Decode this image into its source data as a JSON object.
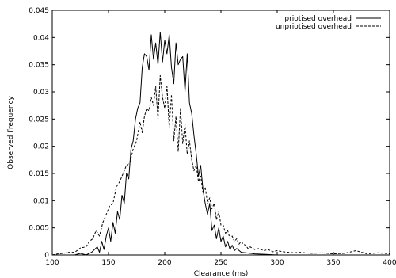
{
  "chart_data": {
    "type": "line",
    "xlabel": "Clearance (ms)",
    "ylabel": "Observed Frequency",
    "xlim": [
      100,
      400
    ],
    "ylim": [
      0,
      0.045
    ],
    "x_ticks": [
      "100",
      "150",
      "200",
      "250",
      "300",
      "350",
      "400"
    ],
    "y_ticks": [
      "0",
      "0.005",
      "0.01",
      "0.015",
      "0.02",
      "0.025",
      "0.03",
      "0.035",
      "0.04",
      "0.045"
    ],
    "grid": false,
    "legend_position": "top-right",
    "series": [
      {
        "name": "priotised overhead",
        "style": "solid",
        "x": [
          100,
          110,
          120,
          125,
          130,
          135,
          140,
          142,
          144,
          146,
          148,
          150,
          152,
          154,
          156,
          158,
          160,
          162,
          164,
          166,
          168,
          170,
          172,
          174,
          176,
          178,
          180,
          182,
          184,
          186,
          188,
          190,
          192,
          194,
          196,
          198,
          200,
          202,
          204,
          206,
          208,
          210,
          212,
          214,
          216,
          218,
          220,
          222,
          224,
          226,
          228,
          230,
          232,
          234,
          236,
          238,
          240,
          242,
          244,
          246,
          248,
          250,
          252,
          254,
          256,
          258,
          260,
          262,
          264,
          268,
          272,
          276,
          280,
          290,
          300,
          320,
          350,
          380,
          400
        ],
        "y": [
          0,
          0,
          0,
          0.0003,
          0,
          0.0005,
          0.0015,
          0.0005,
          0.0025,
          0.001,
          0.0035,
          0.005,
          0.0025,
          0.006,
          0.004,
          0.008,
          0.0065,
          0.011,
          0.0095,
          0.015,
          0.014,
          0.0195,
          0.021,
          0.025,
          0.027,
          0.028,
          0.0345,
          0.037,
          0.0365,
          0.034,
          0.0405,
          0.036,
          0.039,
          0.035,
          0.041,
          0.0355,
          0.0395,
          0.037,
          0.0405,
          0.0345,
          0.0315,
          0.039,
          0.035,
          0.036,
          0.0365,
          0.03,
          0.037,
          0.028,
          0.026,
          0.022,
          0.0185,
          0.0145,
          0.0165,
          0.012,
          0.0095,
          0.0075,
          0.0095,
          0.0045,
          0.0055,
          0.003,
          0.005,
          0.0025,
          0.0035,
          0.0015,
          0.0025,
          0.001,
          0.0018,
          0.0008,
          0.0012,
          0.0005,
          0.0004,
          0.0003,
          0.0002,
          0.0001,
          0,
          0,
          0,
          0,
          0
        ]
      },
      {
        "name": "unpriotised overhead",
        "style": "dashed",
        "x": [
          100,
          105,
          110,
          115,
          120,
          125,
          130,
          133,
          136,
          139,
          142,
          145,
          148,
          151,
          154,
          157,
          160,
          163,
          166,
          169,
          172,
          175,
          178,
          180,
          182,
          184,
          186,
          188,
          190,
          192,
          194,
          196,
          198,
          200,
          202,
          204,
          206,
          208,
          210,
          212,
          214,
          216,
          218,
          220,
          222,
          224,
          226,
          228,
          230,
          232,
          234,
          236,
          238,
          240,
          242,
          244,
          246,
          248,
          250,
          252,
          254,
          256,
          258,
          260,
          262,
          264,
          266,
          268,
          270,
          272,
          274,
          276,
          280,
          284,
          288,
          292,
          296,
          300,
          305,
          310,
          315,
          320,
          330,
          340,
          350,
          360,
          370,
          380,
          390,
          400
        ],
        "y": [
          0,
          0.0002,
          0.0003,
          0.0005,
          0.0005,
          0.0013,
          0.0015,
          0.0025,
          0.003,
          0.0045,
          0.0035,
          0.006,
          0.0075,
          0.009,
          0.0095,
          0.0125,
          0.0135,
          0.015,
          0.0165,
          0.017,
          0.0195,
          0.021,
          0.0245,
          0.0225,
          0.0255,
          0.027,
          0.0265,
          0.029,
          0.0275,
          0.031,
          0.025,
          0.033,
          0.029,
          0.027,
          0.031,
          0.0235,
          0.0295,
          0.021,
          0.0255,
          0.019,
          0.027,
          0.0205,
          0.024,
          0.0185,
          0.021,
          0.0175,
          0.0155,
          0.0165,
          0.0135,
          0.0145,
          0.0115,
          0.0125,
          0.0095,
          0.0105,
          0.0085,
          0.0095,
          0.0065,
          0.008,
          0.0055,
          0.0055,
          0.004,
          0.0045,
          0.003,
          0.0035,
          0.0025,
          0.003,
          0.002,
          0.0025,
          0.002,
          0.0018,
          0.0012,
          0.0015,
          0.001,
          0.0012,
          0.0008,
          0.001,
          0.0006,
          0.0008,
          0.0006,
          0.0005,
          0.0004,
          0.0005,
          0.0003,
          0.0004,
          0.0002,
          0.0003,
          0.0008,
          0.0002,
          0.0004,
          0.0002
        ]
      }
    ]
  }
}
